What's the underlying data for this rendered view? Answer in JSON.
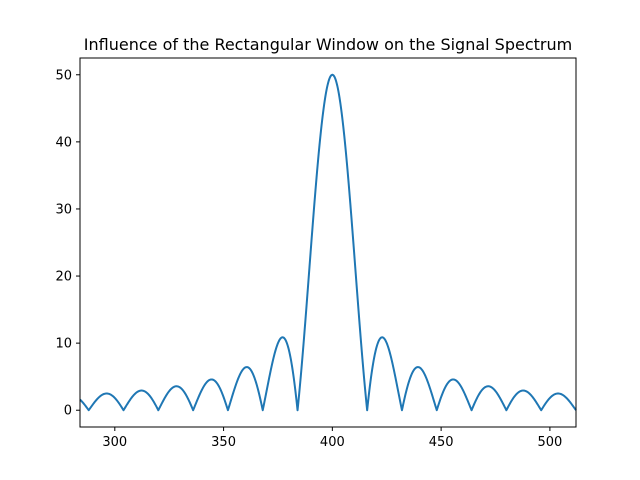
{
  "chart_data": {
    "type": "line",
    "title": "Influence of the Rectangular Window on the Signal Spectrum",
    "xlabel": "",
    "ylabel": "",
    "xlim": [
      284,
      512
    ],
    "ylim": [
      -2.5,
      52.5
    ],
    "xticks": [
      300,
      350,
      400,
      450,
      500
    ],
    "yticks": [
      0,
      10,
      20,
      30,
      40,
      50
    ],
    "grid": false,
    "legend": "none",
    "series_color": "#1f77b4",
    "series": [
      {
        "model": "abs(sin(pi*(x-400)/16) / sin(pi*(x-400)/1024))",
        "peak_x": 400,
        "peak_y": 50,
        "null_spacing": 16,
        "x_start": 284,
        "x_end": 512,
        "points": [
          [
            284,
            1.3
          ],
          [
            288,
            0.1
          ],
          [
            296,
            2.5
          ],
          [
            304,
            0.0
          ],
          [
            312,
            2.9
          ],
          [
            320,
            0.0
          ],
          [
            328,
            3.5
          ],
          [
            336,
            0.0
          ],
          [
            344,
            4.5
          ],
          [
            352,
            0.0
          ],
          [
            360,
            6.4
          ],
          [
            368,
            0.0
          ],
          [
            376,
            10.8
          ],
          [
            384,
            0.0
          ],
          [
            392,
            31.8
          ],
          [
            400,
            50.0
          ],
          [
            408,
            31.8
          ],
          [
            416,
            0.0
          ],
          [
            424,
            10.8
          ],
          [
            432,
            0.0
          ],
          [
            440,
            6.4
          ],
          [
            448,
            0.0
          ],
          [
            456,
            4.5
          ],
          [
            464,
            0.0
          ],
          [
            472,
            3.5
          ],
          [
            480,
            0.0
          ],
          [
            488,
            2.9
          ],
          [
            496,
            0.0
          ],
          [
            504,
            2.5
          ],
          [
            512,
            0.1
          ]
        ]
      }
    ]
  }
}
